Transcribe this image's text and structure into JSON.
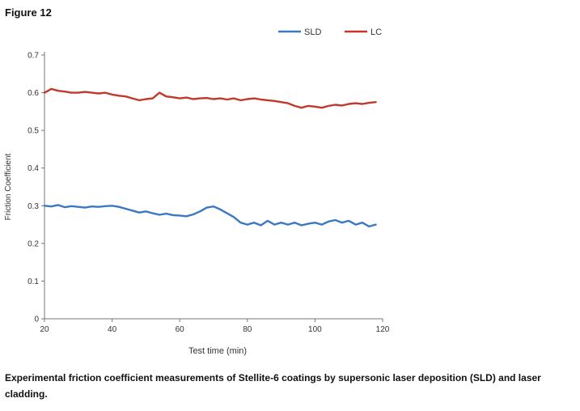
{
  "figure_label": "Figure 12",
  "caption": "Experimental friction coefficient measurements of Stellite-6 coatings by supersonic laser deposition (SLD) and laser cladding.",
  "chart_data": {
    "type": "line",
    "title": "",
    "xlabel": "Test time (min)",
    "ylabel": "Friction Coefficient",
    "xlim": [
      20,
      120
    ],
    "ylim": [
      0,
      0.7
    ],
    "xticks": [
      20,
      40,
      60,
      80,
      100,
      120
    ],
    "yticks": [
      0,
      0.1,
      0.2,
      0.3,
      0.4,
      0.5,
      0.6,
      0.7
    ],
    "ytick_labels": [
      "0",
      "0.1",
      "0.2",
      "0.3",
      "0.4",
      "0.5",
      "0.6",
      "0.7"
    ],
    "grid": false,
    "legend_position": "top-right",
    "series": [
      {
        "name": "SLD",
        "color": "#3b78c3",
        "x": [
          20,
          22,
          24,
          26,
          28,
          30,
          32,
          34,
          36,
          38,
          40,
          42,
          44,
          46,
          48,
          50,
          52,
          54,
          56,
          58,
          60,
          62,
          64,
          66,
          68,
          70,
          72,
          74,
          76,
          78,
          80,
          82,
          84,
          86,
          88,
          90,
          92,
          94,
          96,
          98,
          100,
          102,
          104,
          106,
          108,
          110,
          112,
          114,
          116,
          118
        ],
        "y": [
          0.3,
          0.298,
          0.302,
          0.296,
          0.299,
          0.297,
          0.295,
          0.298,
          0.297,
          0.299,
          0.3,
          0.297,
          0.292,
          0.287,
          0.282,
          0.285,
          0.28,
          0.276,
          0.279,
          0.275,
          0.274,
          0.272,
          0.277,
          0.285,
          0.295,
          0.298,
          0.29,
          0.28,
          0.27,
          0.255,
          0.25,
          0.255,
          0.248,
          0.26,
          0.25,
          0.255,
          0.25,
          0.255,
          0.248,
          0.252,
          0.255,
          0.25,
          0.258,
          0.262,
          0.255,
          0.26,
          0.25,
          0.255,
          0.245,
          0.25
        ]
      },
      {
        "name": "LC",
        "color": "#c0392b",
        "x": [
          20,
          22,
          24,
          26,
          28,
          30,
          32,
          34,
          36,
          38,
          40,
          42,
          44,
          46,
          48,
          50,
          52,
          54,
          56,
          58,
          60,
          62,
          64,
          66,
          68,
          70,
          72,
          74,
          76,
          78,
          80,
          82,
          84,
          86,
          88,
          90,
          92,
          94,
          96,
          98,
          100,
          102,
          104,
          106,
          108,
          110,
          112,
          114,
          116,
          118
        ],
        "y": [
          0.6,
          0.61,
          0.605,
          0.603,
          0.6,
          0.6,
          0.602,
          0.6,
          0.598,
          0.6,
          0.595,
          0.592,
          0.59,
          0.585,
          0.58,
          0.583,
          0.585,
          0.6,
          0.59,
          0.588,
          0.585,
          0.587,
          0.583,
          0.585,
          0.586,
          0.583,
          0.585,
          0.582,
          0.585,
          0.58,
          0.583,
          0.585,
          0.582,
          0.58,
          0.578,
          0.575,
          0.572,
          0.565,
          0.56,
          0.565,
          0.563,
          0.56,
          0.565,
          0.568,
          0.566,
          0.57,
          0.572,
          0.57,
          0.573,
          0.575
        ]
      }
    ]
  }
}
